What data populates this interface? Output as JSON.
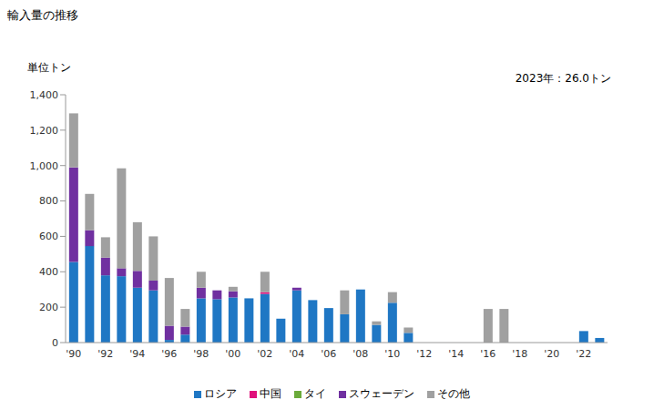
{
  "chart_data": {
    "type": "bar",
    "title": "輸入量の推移",
    "y_label": "単位トン",
    "annotations": [
      "2023年：26.0トン"
    ],
    "stacked": true,
    "grid": false,
    "legend": "bottom",
    "categories": [
      "'90",
      null,
      "'92",
      null,
      "'94",
      null,
      "'96",
      null,
      "'98",
      null,
      "'00",
      null,
      "'02",
      null,
      "'04",
      null,
      "'06",
      null,
      "'08",
      null,
      "'10",
      null,
      "'12",
      null,
      "'14",
      null,
      "'16",
      null,
      "'18",
      null,
      "'20",
      null,
      "'22",
      null
    ],
    "series": [
      {
        "name": "ロシア",
        "color": "#1F77C4",
        "values": [
          455,
          545,
          380,
          375,
          310,
          295,
          15,
          45,
          250,
          245,
          255,
          250,
          275,
          135,
          295,
          240,
          195,
          160,
          300,
          100,
          225,
          55,
          0,
          0,
          0,
          0,
          0,
          0,
          0,
          0,
          0,
          0,
          65,
          26
        ]
      },
      {
        "name": "中国",
        "color": "#E0107A",
        "values": [
          0,
          0,
          0,
          0,
          0,
          0,
          0,
          0,
          0,
          0,
          0,
          0,
          10,
          0,
          0,
          0,
          0,
          0,
          0,
          0,
          0,
          0,
          0,
          0,
          0,
          0,
          0,
          0,
          0,
          0,
          0,
          0,
          0,
          0
        ]
      },
      {
        "name": "タイ",
        "color": "#6AAA3A",
        "values": [
          0,
          0,
          0,
          0,
          0,
          0,
          0,
          0,
          0,
          0,
          0,
          0,
          0,
          0,
          0,
          0,
          0,
          0,
          0,
          0,
          0,
          0,
          0,
          0,
          0,
          0,
          0,
          0,
          0,
          0,
          0,
          0,
          0,
          0
        ]
      },
      {
        "name": "スウェーデン",
        "color": "#7030A0",
        "values": [
          535,
          90,
          100,
          45,
          95,
          55,
          80,
          45,
          60,
          50,
          35,
          0,
          0,
          0,
          15,
          0,
          0,
          0,
          0,
          0,
          0,
          0,
          0,
          0,
          0,
          0,
          0,
          0,
          0,
          0,
          0,
          0,
          0,
          0
        ]
      },
      {
        "name": "その他",
        "color": "#A0A0A0",
        "values": [
          305,
          205,
          115,
          565,
          275,
          250,
          270,
          100,
          90,
          0,
          25,
          0,
          115,
          0,
          0,
          0,
          0,
          135,
          0,
          20,
          60,
          30,
          0,
          0,
          0,
          0,
          190,
          190,
          0,
          0,
          0,
          0,
          0,
          0
        ]
      }
    ],
    "ylim": [
      0,
      1400
    ],
    "yticks": [
      0,
      200,
      400,
      600,
      800,
      {
        "value": 1000,
        "label": "1,000"
      },
      {
        "value": 1200,
        "label": "1,200"
      },
      {
        "value": 1400,
        "label": "1,400"
      }
    ]
  }
}
